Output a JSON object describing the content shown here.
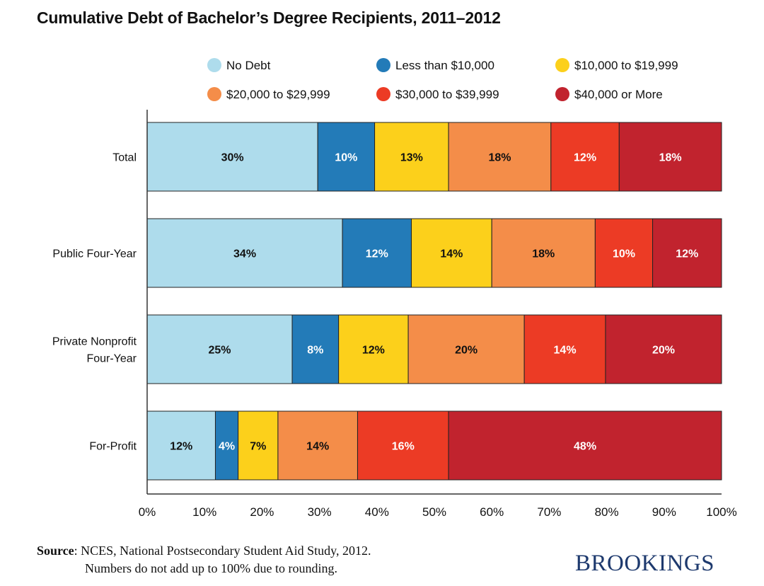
{
  "chart_data": {
    "type": "bar",
    "orientation": "horizontal",
    "stacked": true,
    "title": "Cumulative Debt of Bachelor’s Degree Recipients, 2011–2012",
    "categories": [
      "Total",
      "Public Four-Year",
      "Private Nonprofit Four-Year",
      "For-Profit"
    ],
    "category_lines": [
      [
        "Total"
      ],
      [
        "Public Four-Year"
      ],
      [
        "Private Nonprofit",
        "Four-Year"
      ],
      [
        "For-Profit"
      ]
    ],
    "series": [
      {
        "name": "No Debt",
        "color": "#aedcec",
        "label_color": "#111111",
        "values": [
          30,
          34,
          25,
          12
        ]
      },
      {
        "name": "Less than $10,000",
        "color": "#237bb8",
        "label_color": "#ffffff",
        "values": [
          10,
          12,
          8,
          4
        ]
      },
      {
        "name": "$10,000 to $19,999",
        "color": "#fcd01b",
        "label_color": "#111111",
        "values": [
          13,
          14,
          12,
          7
        ]
      },
      {
        "name": "$20,000 to $29,999",
        "color": "#f48d49",
        "label_color": "#111111",
        "values": [
          18,
          18,
          20,
          14
        ]
      },
      {
        "name": "$30,000 to $39,999",
        "color": "#ec3b25",
        "label_color": "#ffffff",
        "values": [
          12,
          10,
          14,
          16
        ]
      },
      {
        "name": "$40,000 or More",
        "color": "#c1232e",
        "label_color": "#ffffff",
        "values": [
          18,
          12,
          20,
          48
        ]
      }
    ],
    "xlim": [
      0,
      100
    ],
    "xticks": [
      "0%",
      "10%",
      "20%",
      "30%",
      "40%",
      "50%",
      "60%",
      "70%",
      "80%",
      "90%",
      "100%"
    ],
    "legend_position": "top",
    "grid": false
  },
  "source": {
    "label": "Source",
    "line1": ": NCES, National Postsecondary Student Aid Study, 2012.",
    "line2": "Numbers do not add up to 100% due to rounding."
  },
  "logo": "BROOKINGS"
}
